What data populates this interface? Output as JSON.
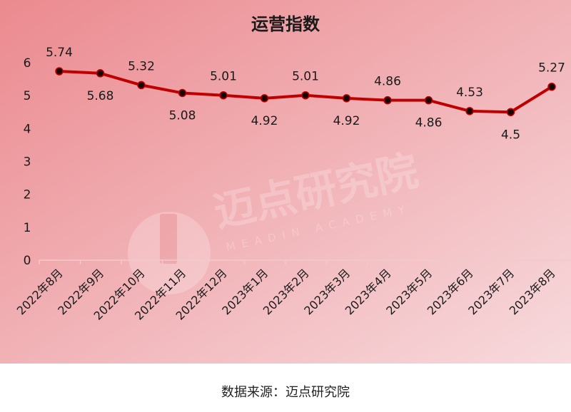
{
  "colors": {
    "background_top": "#eb8a8f",
    "background_bottom": "#f7dadd",
    "line": "#c00000",
    "marker": "#1a0505",
    "text": "#1a1a1a"
  },
  "watermark": {
    "logo_text": "迈点研究院",
    "logo_subtext": "MEADIN ACADEMY"
  },
  "source": "数据来源：迈点研究院",
  "chart_data": {
    "type": "line",
    "title": "运营指数",
    "xlabel": "",
    "ylabel": "",
    "ylim": [
      0,
      6
    ],
    "yticks": [
      0,
      1,
      2,
      3,
      4,
      5,
      6
    ],
    "grid": false,
    "categories": [
      "2022年8月",
      "2022年9月",
      "2022年10月",
      "2022年11月",
      "2022年12月",
      "2023年1月",
      "2023年2月",
      "2023年3月",
      "2023年4月",
      "2023年5月",
      "2023年6月",
      "2023年7月",
      "2023年8月"
    ],
    "series": [
      {
        "values": [
          5.74,
          5.68,
          5.32,
          5.08,
          5.01,
          4.92,
          5.01,
          4.92,
          4.86,
          4.86,
          4.53,
          4.5,
          5.27
        ],
        "labels": [
          "5.74",
          "5.68",
          "5.32",
          "5.08",
          "5.01",
          "4.92",
          "5.01",
          "4.92",
          "4.86",
          "4.86",
          "4.53",
          "4.5",
          "5.27"
        ]
      }
    ]
  }
}
